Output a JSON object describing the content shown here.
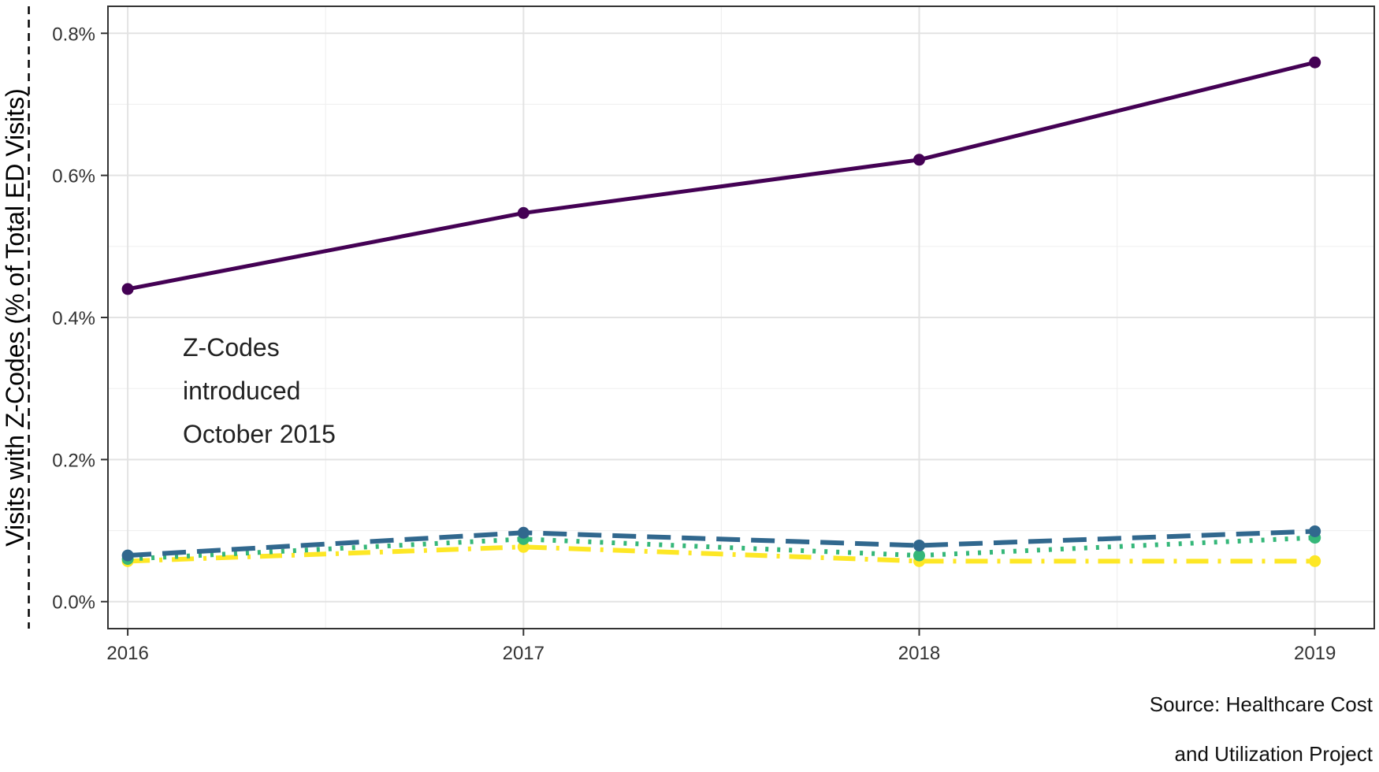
{
  "chart_data": {
    "type": "line",
    "title": "",
    "xlabel": "",
    "ylabel": "Visits with Z-Codes (% of Total ED Visits)",
    "x": [
      "2016",
      "2017",
      "2018",
      "2019"
    ],
    "x_range": [
      2015.95,
      2019.15
    ],
    "ylim": [
      -0.038,
      0.838
    ],
    "y_ticks": [
      "0.0%",
      "0.2%",
      "0.4%",
      "0.6%",
      "0.8%"
    ],
    "y_tick_values": [
      0,
      0.2,
      0.4,
      0.6,
      0.8
    ],
    "grid": true,
    "series": [
      {
        "values": [
          0.44,
          0.547,
          0.622,
          0.759
        ],
        "color": "#440154",
        "style": "solid"
      },
      {
        "values": [
          0.065,
          0.097,
          0.079,
          0.099
        ],
        "color": "#31688E",
        "style": "dashed"
      },
      {
        "values": [
          0.06,
          0.088,
          0.065,
          0.09
        ],
        "color": "#35B779",
        "style": "dotted"
      },
      {
        "values": [
          0.057,
          0.077,
          0.057,
          0.057
        ],
        "color": "#FDE725",
        "style": "dotdash"
      }
    ],
    "reference_line": {
      "x": 2015.75,
      "style": "dashed",
      "color": "#000000"
    },
    "annotation": [
      "Z-Codes",
      "introduced",
      "October 2015"
    ],
    "caption": [
      "Source: Healthcare Cost",
      "and Utilization Project"
    ]
  }
}
